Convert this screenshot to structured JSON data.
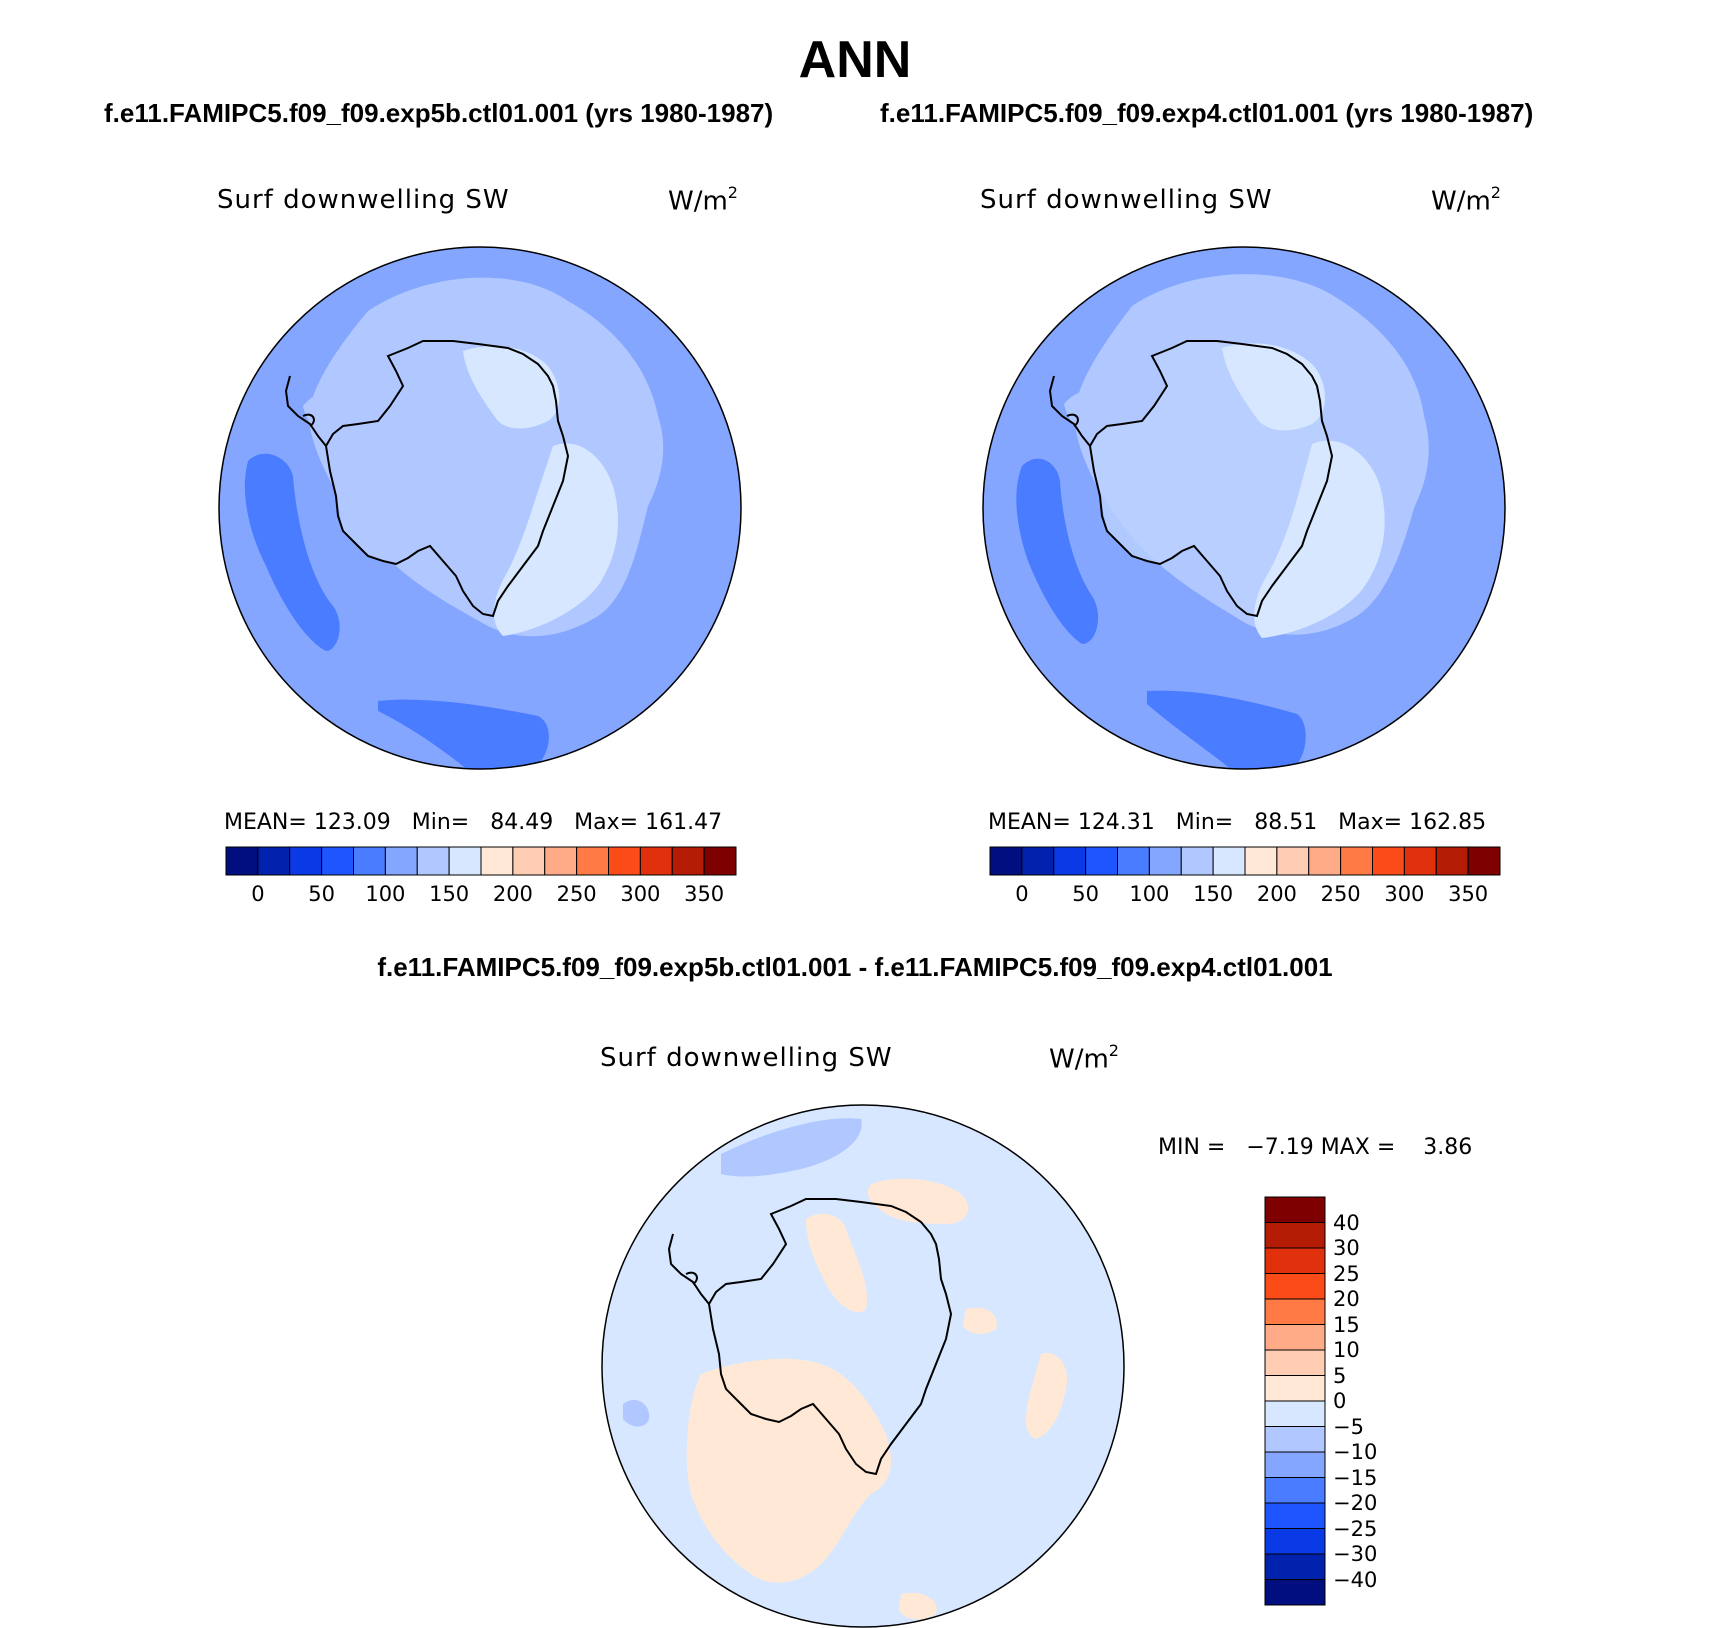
{
  "title": "ANN",
  "left_panel": {
    "case_title": "f.e11.FAMIPC5.f09_f09.exp5b.ctl01.001 (yrs 1980-1987)",
    "var_label": "Surf downwelling SW",
    "units": "W/m",
    "units_sup": "2",
    "stats": "MEAN= 123.09   Min=   84.49   Max= 161.47"
  },
  "right_panel": {
    "case_title": "f.e11.FAMIPC5.f09_f09.exp4.ctl01.001 (yrs 1980-1987)",
    "var_label": "Surf downwelling SW",
    "units": "W/m",
    "units_sup": "2",
    "stats": "MEAN= 124.31   Min=   88.51   Max= 162.85"
  },
  "diff_panel": {
    "title": "f.e11.FAMIPC5.f09_f09.exp5b.ctl01.001 - f.e11.FAMIPC5.f09_f09.exp4.ctl01.001",
    "var_label": "Surf downwelling SW",
    "units": "W/m",
    "units_sup": "2",
    "stats": "MIN =   −7.19 MAX =    3.86"
  },
  "colorbar_abs": {
    "ticks": [
      "0",
      "50",
      "100",
      "150",
      "200",
      "250",
      "300",
      "350"
    ],
    "colors": [
      "#000e80",
      "#0022ad",
      "#0a3ae6",
      "#1f55ff",
      "#4a7cff",
      "#84a6ff",
      "#b0c8ff",
      "#d6e7ff",
      "#ffe9d6",
      "#ffcdb3",
      "#ffab88",
      "#ff7a45",
      "#fa4b18",
      "#e0310c",
      "#b51c05",
      "#7e0000"
    ]
  },
  "colorbar_diff": {
    "ticks": [
      "40",
      "30",
      "25",
      "20",
      "15",
      "10",
      "5",
      "0",
      "−5",
      "−10",
      "−15",
      "−20",
      "−25",
      "−30",
      "−40"
    ],
    "colors_top_to_bottom": [
      "#7e0000",
      "#b51c05",
      "#e0310c",
      "#fa4b18",
      "#ff7a45",
      "#ffab88",
      "#ffcdb3",
      "#ffe9d6",
      "#d6e7ff",
      "#b0c8ff",
      "#84a6ff",
      "#4a7cff",
      "#1f55ff",
      "#0a3ae6",
      "#0022ad",
      "#000e80"
    ]
  },
  "map_colors": {
    "ocean_mid": "#84a6ff",
    "ocean_low": "#4a7cff",
    "light": "#b0c8ff",
    "lightest": "#d6e7ff",
    "pos_small": "#ffe9d6",
    "coast": "#000000"
  }
}
